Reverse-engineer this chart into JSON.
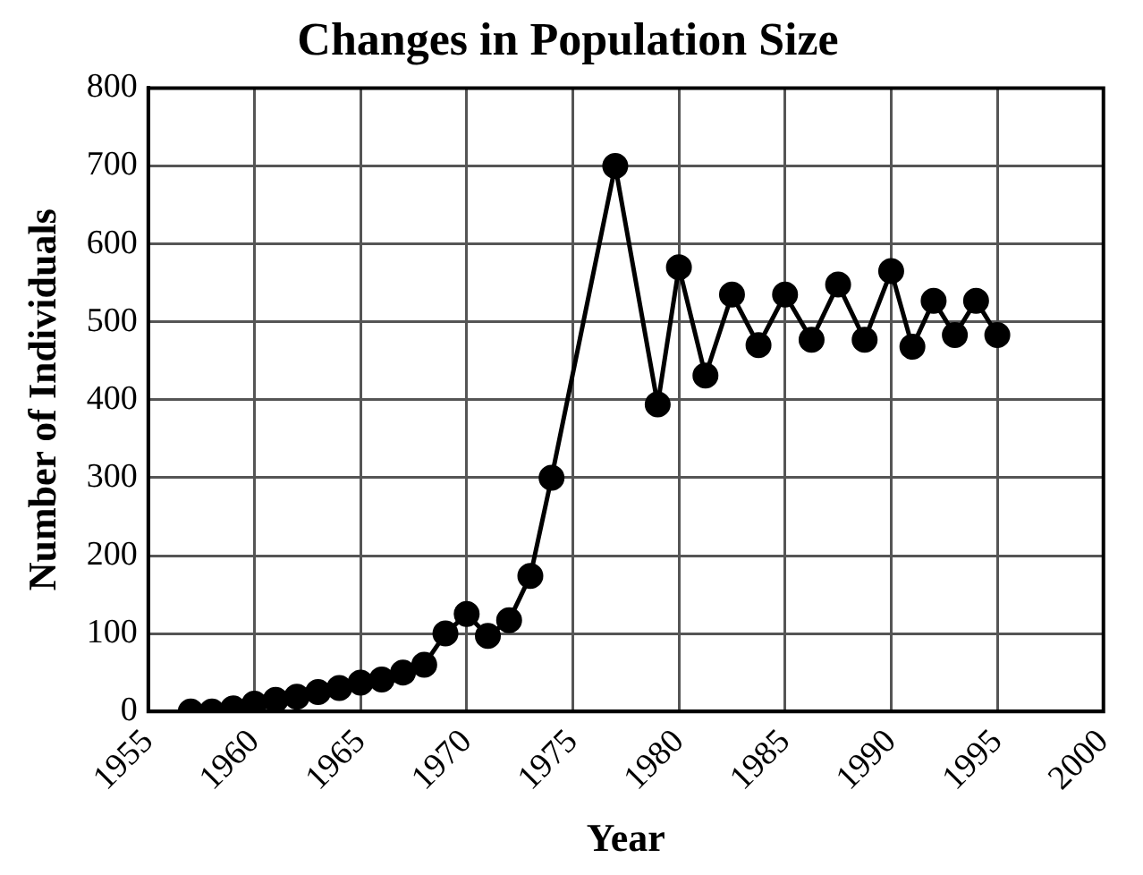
{
  "chart_data": {
    "type": "line",
    "title": "Changes in Population Size",
    "xlabel": "Year",
    "ylabel": "Number of Individuals",
    "x": [
      1957,
      1958,
      1959,
      1960,
      1961,
      1962,
      1963,
      1964,
      1965,
      1966,
      1967,
      1968,
      1969,
      1970,
      1971,
      1972,
      1973,
      1974,
      1977,
      1979,
      1980,
      1981.25,
      1982.5,
      1983.75,
      1985,
      1986.25,
      1987.5,
      1988.75,
      1990,
      1991,
      1992,
      1993,
      1994,
      1995
    ],
    "series": [
      {
        "color": "#000000",
        "values": [
          0,
          0,
          4,
          10,
          15,
          19,
          25,
          30,
          37,
          41,
          50,
          60,
          100,
          125,
          97,
          117,
          174,
          300,
          700,
          394,
          570,
          431,
          535,
          470,
          535,
          477,
          548,
          477,
          565,
          468,
          527,
          483,
          527,
          483
        ]
      }
    ],
    "xlim": [
      1955,
      2000
    ],
    "xticks": [
      1955,
      1960,
      1965,
      1970,
      1975,
      1980,
      1985,
      1990,
      1995,
      2000
    ],
    "ylim": [
      0,
      800
    ],
    "yticks": [
      0,
      100,
      200,
      300,
      400,
      500,
      600,
      700,
      800
    ],
    "grid": true,
    "legend": false,
    "marker": "circle",
    "line_style": "solid"
  }
}
